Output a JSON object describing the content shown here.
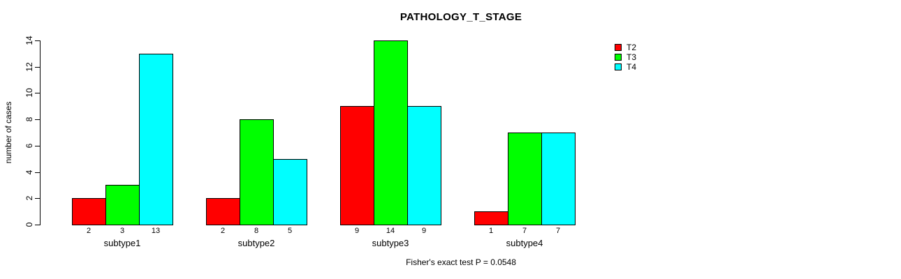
{
  "chart_data": {
    "type": "bar",
    "title": "PATHOLOGY_T_STAGE",
    "categories": [
      "subtype1",
      "subtype2",
      "subtype3",
      "subtype4"
    ],
    "series": [
      {
        "name": "T2",
        "color": "#ff0000",
        "values": [
          2,
          2,
          9,
          1
        ]
      },
      {
        "name": "T3",
        "color": "#00ff00",
        "values": [
          3,
          8,
          14,
          7
        ]
      },
      {
        "name": "T4",
        "color": "#00ffff",
        "values": [
          13,
          5,
          9,
          7
        ]
      }
    ],
    "xlabel": "",
    "ylabel": "number of cases",
    "ylim": [
      0,
      14
    ],
    "yticks": [
      0,
      2,
      4,
      6,
      8,
      10,
      12,
      14
    ],
    "grid": false,
    "legend_position": "top-right",
    "bar_value_labels_shown": true,
    "footnote": "Fisher's exact test P = 0.0548"
  }
}
